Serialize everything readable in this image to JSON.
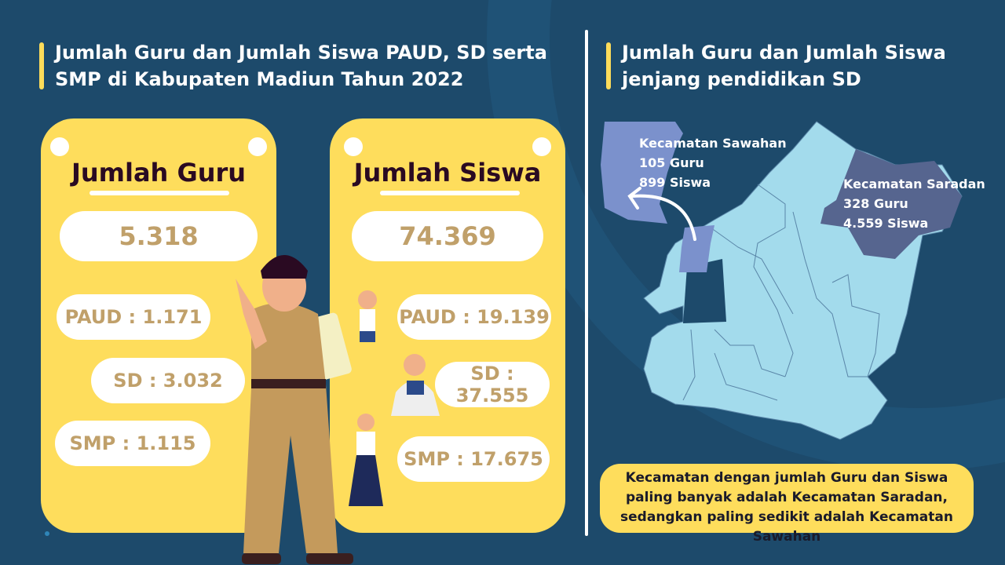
{
  "left_title": "Jumlah Guru dan Jumlah Siswa PAUD, SD serta SMP di Kabupaten Madiun Tahun 2022",
  "right_title": "Jumlah Guru dan Jumlah Siswa jenjang pendidikan SD",
  "guru_card": {
    "heading": "Jumlah Guru",
    "total": "5.318",
    "paud": "PAUD : 1.171",
    "sd": "SD : 3.032",
    "smp": "SMP : 1.115"
  },
  "siswa_card": {
    "heading": "Jumlah Siswa",
    "total": "74.369",
    "paud": "PAUD : 19.139",
    "sd": "SD : 37.555",
    "smp": "SMP : 17.675"
  },
  "map": {
    "sawahan": {
      "name": "Kecamatan Sawahan",
      "guru": "105 Guru",
      "siswa": "899 Siswa"
    },
    "saradan": {
      "name": "Kecamatan Saradan",
      "guru": "328 Guru",
      "siswa": "4.559 Siswa"
    }
  },
  "conclusion": "Kecamatan dengan jumlah Guru dan Siswa paling banyak adalah Kecamatan Saradan, sedangkan paling sedikit adalah Kecamatan Sawahan",
  "colors": {
    "background": "#1d4a6b",
    "card": "#fedd5c",
    "number_text": "#c0a06a",
    "map_base": "#a3dbec",
    "sawahan": "#7b91cc",
    "saradan": "#56658f"
  }
}
